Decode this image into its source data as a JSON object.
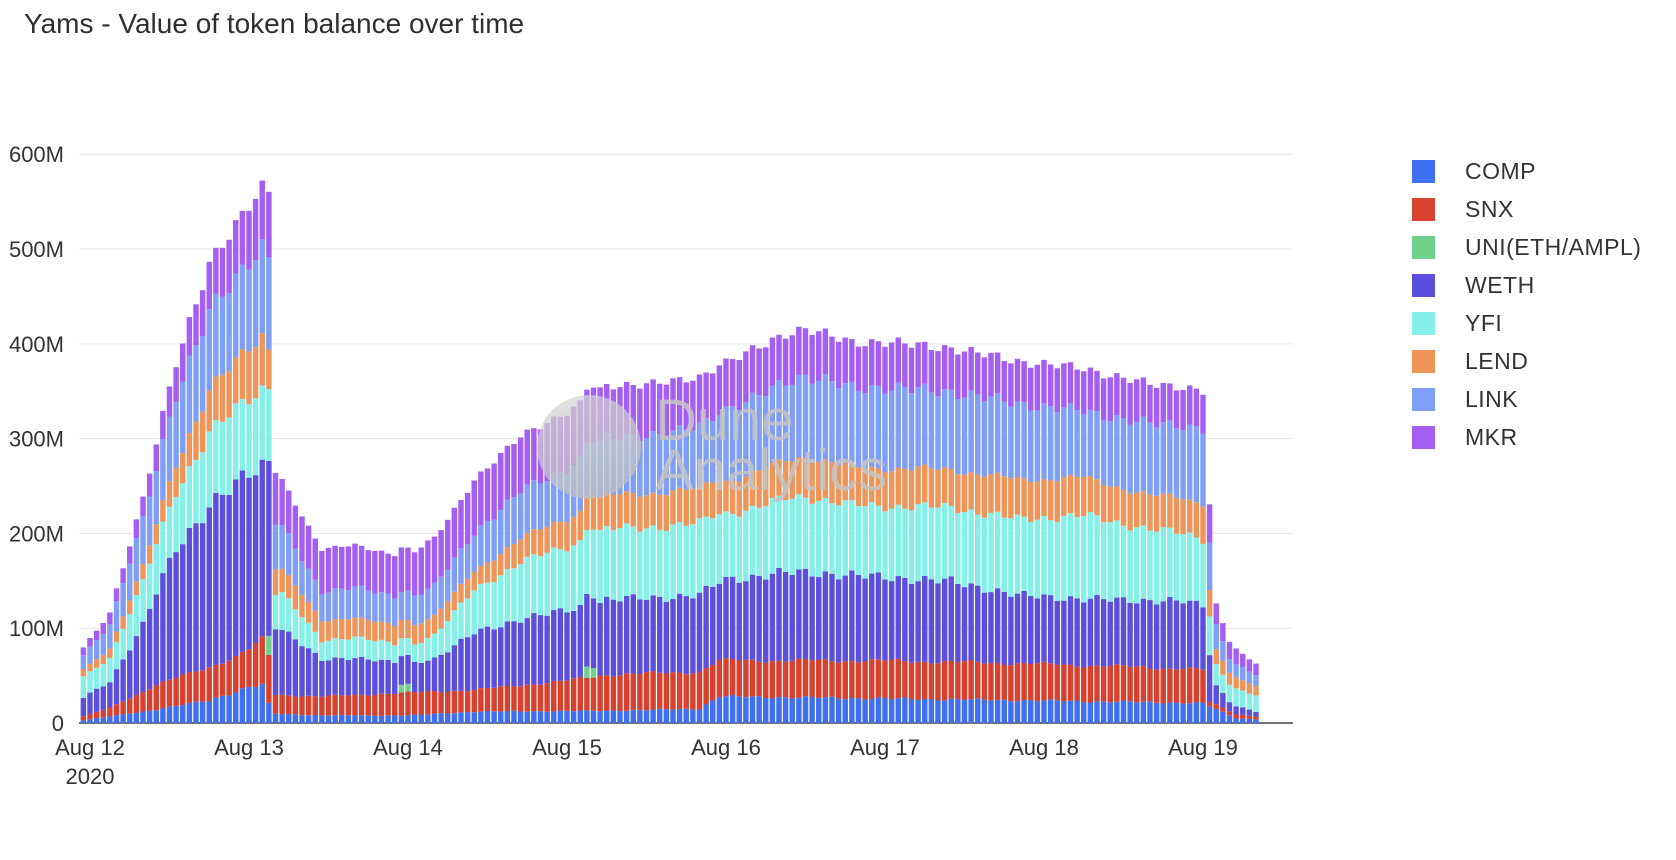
{
  "title": "Yams - Value of token balance over time",
  "watermark": {
    "line1": "Dune",
    "line2": "Analytics"
  },
  "chart_data": {
    "type": "bar",
    "stacked": true,
    "title": "Yams - Value of token balance over time",
    "xlabel": "",
    "ylabel": "",
    "ylim": [
      0,
      615000000
    ],
    "y_ticks": [
      {
        "value": 0,
        "label": "0"
      },
      {
        "value": 100000000,
        "label": "100M"
      },
      {
        "value": 200000000,
        "label": "200M"
      },
      {
        "value": 300000000,
        "label": "300M"
      },
      {
        "value": 400000000,
        "label": "400M"
      },
      {
        "value": 500000000,
        "label": "500M"
      },
      {
        "value": 600000000,
        "label": "600M"
      }
    ],
    "x_ticks": [
      {
        "hour": 0,
        "label": "Aug 12",
        "sublabel": "2020"
      },
      {
        "hour": 24,
        "label": "Aug 13"
      },
      {
        "hour": 48,
        "label": "Aug 14"
      },
      {
        "hour": 72,
        "label": "Aug 15"
      },
      {
        "hour": 96,
        "label": "Aug 16"
      },
      {
        "hour": 120,
        "label": "Aug 17"
      },
      {
        "hour": 144,
        "label": "Aug 18"
      },
      {
        "hour": 168,
        "label": "Aug 19"
      }
    ],
    "x_start": "2020-08-12 00:00",
    "x_unit": "hour",
    "grid": true,
    "legend_position": "right",
    "series": [
      {
        "name": "COMP",
        "color": "#3f6ff2",
        "anchors": [
          [
            -1,
            3
          ],
          [
            8,
            12
          ],
          [
            18,
            24
          ],
          [
            24,
            38
          ],
          [
            26,
            40
          ],
          [
            27.5,
            10
          ],
          [
            35,
            8
          ],
          [
            48,
            8
          ],
          [
            58,
            12
          ],
          [
            78,
            13
          ],
          [
            92,
            15
          ],
          [
            95,
            28
          ],
          [
            140,
            24
          ],
          [
            160,
            22
          ],
          [
            168,
            21
          ],
          [
            173,
            5
          ],
          [
            176,
            4
          ]
        ]
      },
      {
        "name": "SNX",
        "color": "#d9412f",
        "anchors": [
          [
            -1,
            4
          ],
          [
            3,
            9
          ],
          [
            10,
            26
          ],
          [
            18,
            35
          ],
          [
            22,
            37
          ],
          [
            24,
            40
          ],
          [
            27,
            52
          ],
          [
            27.5,
            20
          ],
          [
            35,
            20
          ],
          [
            48,
            24
          ],
          [
            58,
            23
          ],
          [
            72,
            32
          ],
          [
            78,
            38
          ],
          [
            92,
            39
          ],
          [
            95,
            38
          ],
          [
            120,
            40
          ],
          [
            140,
            39
          ],
          [
            165,
            36
          ],
          [
            168,
            35
          ],
          [
            169,
            5
          ],
          [
            174,
            4
          ],
          [
            176,
            3
          ]
        ]
      },
      {
        "name": "UNI(ETH/AMPL)",
        "color": "#6fd08a",
        "anchors": [
          [
            -1,
            0
          ],
          [
            176,
            0
          ]
        ],
        "spikes": [
          [
            27,
            20
          ],
          [
            29,
            0
          ],
          [
            47,
            8
          ],
          [
            48,
            8
          ],
          [
            75,
            12
          ],
          [
            76,
            10
          ]
        ]
      },
      {
        "name": "WETH",
        "color": "#5b4fdd",
        "anchors": [
          [
            -1,
            20
          ],
          [
            3,
            28
          ],
          [
            8,
            70
          ],
          [
            13,
            138
          ],
          [
            18,
            170
          ],
          [
            24,
            185
          ],
          [
            27,
            185
          ],
          [
            27.5,
            75
          ],
          [
            29,
            70
          ],
          [
            35,
            38
          ],
          [
            40,
            40
          ],
          [
            48,
            30
          ],
          [
            52,
            35
          ],
          [
            58,
            60
          ],
          [
            65,
            70
          ],
          [
            72,
            74
          ],
          [
            78,
            79
          ],
          [
            88,
            80
          ],
          [
            94,
            82
          ],
          [
            96,
            85
          ],
          [
            100,
            88
          ],
          [
            105,
            93
          ],
          [
            108,
            93
          ],
          [
            115,
            90
          ],
          [
            120,
            88
          ],
          [
            130,
            85
          ],
          [
            140,
            72
          ],
          [
            150,
            70
          ],
          [
            165,
            71
          ],
          [
            168,
            68
          ],
          [
            169,
            52
          ],
          [
            170,
            20
          ],
          [
            172,
            10
          ],
          [
            176,
            5
          ]
        ]
      },
      {
        "name": "YFI",
        "color": "#86efe8",
        "anchors": [
          [
            -1,
            22
          ],
          [
            3,
            25
          ],
          [
            8,
            45
          ],
          [
            13,
            60
          ],
          [
            18,
            76
          ],
          [
            24,
            80
          ],
          [
            27,
            80
          ],
          [
            27.5,
            35
          ],
          [
            29,
            38
          ],
          [
            35,
            20
          ],
          [
            40,
            22
          ],
          [
            48,
            18
          ],
          [
            52,
            25
          ],
          [
            58,
            45
          ],
          [
            65,
            60
          ],
          [
            70,
            65
          ],
          [
            72,
            67
          ],
          [
            78,
            74
          ],
          [
            88,
            75
          ],
          [
            94,
            75
          ],
          [
            96,
            70
          ],
          [
            100,
            72
          ],
          [
            105,
            78
          ],
          [
            108,
            80
          ],
          [
            115,
            74
          ],
          [
            120,
            75
          ],
          [
            130,
            78
          ],
          [
            140,
            80
          ],
          [
            150,
            88
          ],
          [
            160,
            75
          ],
          [
            168,
            70
          ],
          [
            169,
            40
          ],
          [
            170,
            22
          ],
          [
            172,
            18
          ],
          [
            176,
            17
          ]
        ]
      },
      {
        "name": "LEND",
        "color": "#f0955a",
        "anchors": [
          [
            -1,
            8
          ],
          [
            3,
            10
          ],
          [
            8,
            16
          ],
          [
            13,
            30
          ],
          [
            18,
            44
          ],
          [
            24,
            55
          ],
          [
            26,
            57
          ],
          [
            27,
            40
          ],
          [
            27.5,
            26
          ],
          [
            29,
            25
          ],
          [
            35,
            22
          ],
          [
            40,
            20
          ],
          [
            48,
            20
          ],
          [
            52,
            20
          ],
          [
            58,
            20
          ],
          [
            65,
            25
          ],
          [
            72,
            30
          ],
          [
            78,
            36
          ],
          [
            88,
            36
          ],
          [
            94,
            37
          ],
          [
            96,
            34
          ],
          [
            100,
            37
          ],
          [
            105,
            40
          ],
          [
            108,
            42
          ],
          [
            115,
            40
          ],
          [
            120,
            40
          ],
          [
            130,
            40
          ],
          [
            140,
            42
          ],
          [
            150,
            40
          ],
          [
            160,
            36
          ],
          [
            168,
            38
          ],
          [
            169,
            28
          ],
          [
            170,
            16
          ],
          [
            172,
            12
          ],
          [
            176,
            10
          ]
        ]
      },
      {
        "name": "LINK",
        "color": "#7f9ef5",
        "anchors": [
          [
            -1,
            15
          ],
          [
            3,
            25
          ],
          [
            8,
            50
          ],
          [
            13,
            72
          ],
          [
            18,
            84
          ],
          [
            24,
            90
          ],
          [
            27,
            95
          ],
          [
            27.5,
            50
          ],
          [
            29,
            45
          ],
          [
            35,
            30
          ],
          [
            40,
            32
          ],
          [
            48,
            30
          ],
          [
            52,
            32
          ],
          [
            58,
            40
          ],
          [
            65,
            50
          ],
          [
            72,
            52
          ],
          [
            78,
            60
          ],
          [
            88,
            62
          ],
          [
            94,
            68
          ],
          [
            96,
            75
          ],
          [
            100,
            78
          ],
          [
            105,
            84
          ],
          [
            108,
            85
          ],
          [
            115,
            84
          ],
          [
            120,
            85
          ],
          [
            130,
            82
          ],
          [
            140,
            80
          ],
          [
            150,
            70
          ],
          [
            160,
            75
          ],
          [
            168,
            78
          ],
          [
            169,
            50
          ],
          [
            170,
            25
          ],
          [
            172,
            15
          ],
          [
            176,
            12
          ]
        ]
      },
      {
        "name": "MKR",
        "color": "#a45ef2",
        "anchors": [
          [
            -1,
            8
          ],
          [
            3,
            12
          ],
          [
            8,
            22
          ],
          [
            13,
            35
          ],
          [
            18,
            50
          ],
          [
            24,
            60
          ],
          [
            26,
            62
          ],
          [
            27,
            70
          ],
          [
            27.5,
            55
          ],
          [
            29,
            48
          ],
          [
            35,
            45
          ],
          [
            40,
            44
          ],
          [
            48,
            45
          ],
          [
            52,
            50
          ],
          [
            58,
            56
          ],
          [
            65,
            58
          ],
          [
            72,
            60
          ],
          [
            78,
            55
          ],
          [
            88,
            54
          ],
          [
            94,
            50
          ],
          [
            96,
            50
          ],
          [
            100,
            52
          ],
          [
            105,
            50
          ],
          [
            108,
            50
          ],
          [
            115,
            48
          ],
          [
            120,
            48
          ],
          [
            130,
            46
          ],
          [
            140,
            45
          ],
          [
            150,
            45
          ],
          [
            160,
            42
          ],
          [
            168,
            40
          ],
          [
            169,
            38
          ],
          [
            170,
            22
          ],
          [
            172,
            18
          ],
          [
            176,
            12
          ]
        ]
      }
    ]
  }
}
